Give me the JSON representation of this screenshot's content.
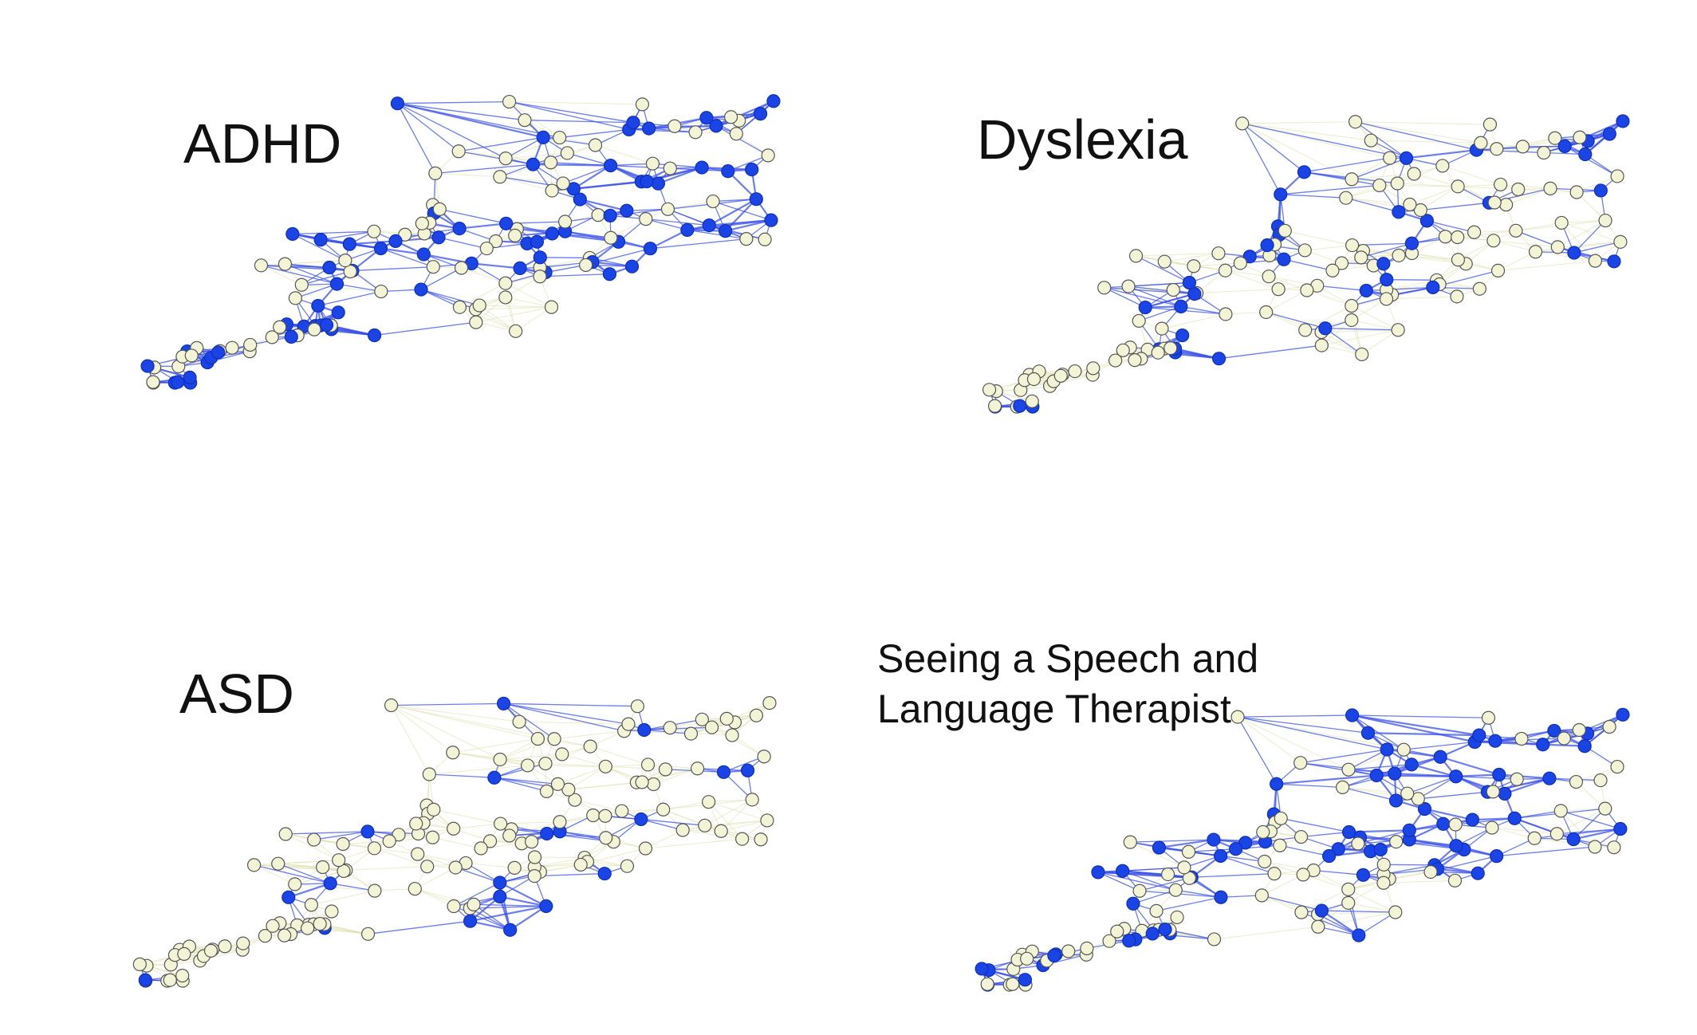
{
  "colors": {
    "highlight_node": "#1a44e6",
    "other_node": "#f3f4d6",
    "node_stroke": "#555555",
    "highlight_edge": "#3b52e8",
    "other_edge": "#dcdfa8"
  },
  "panels": [
    {
      "id": "adhd",
      "title_lines": [
        "ADHD"
      ],
      "density": 0.55
    },
    {
      "id": "dyslexia",
      "title_lines": [
        "Dyslexia"
      ],
      "density": 0.28
    },
    {
      "id": "asd",
      "title_lines": [
        "ASD"
      ],
      "density": 0.17
    },
    {
      "id": "slt",
      "title_lines": [
        "Seeing a Speech and",
        "Language Therapist"
      ],
      "density": 0.45
    }
  ]
}
